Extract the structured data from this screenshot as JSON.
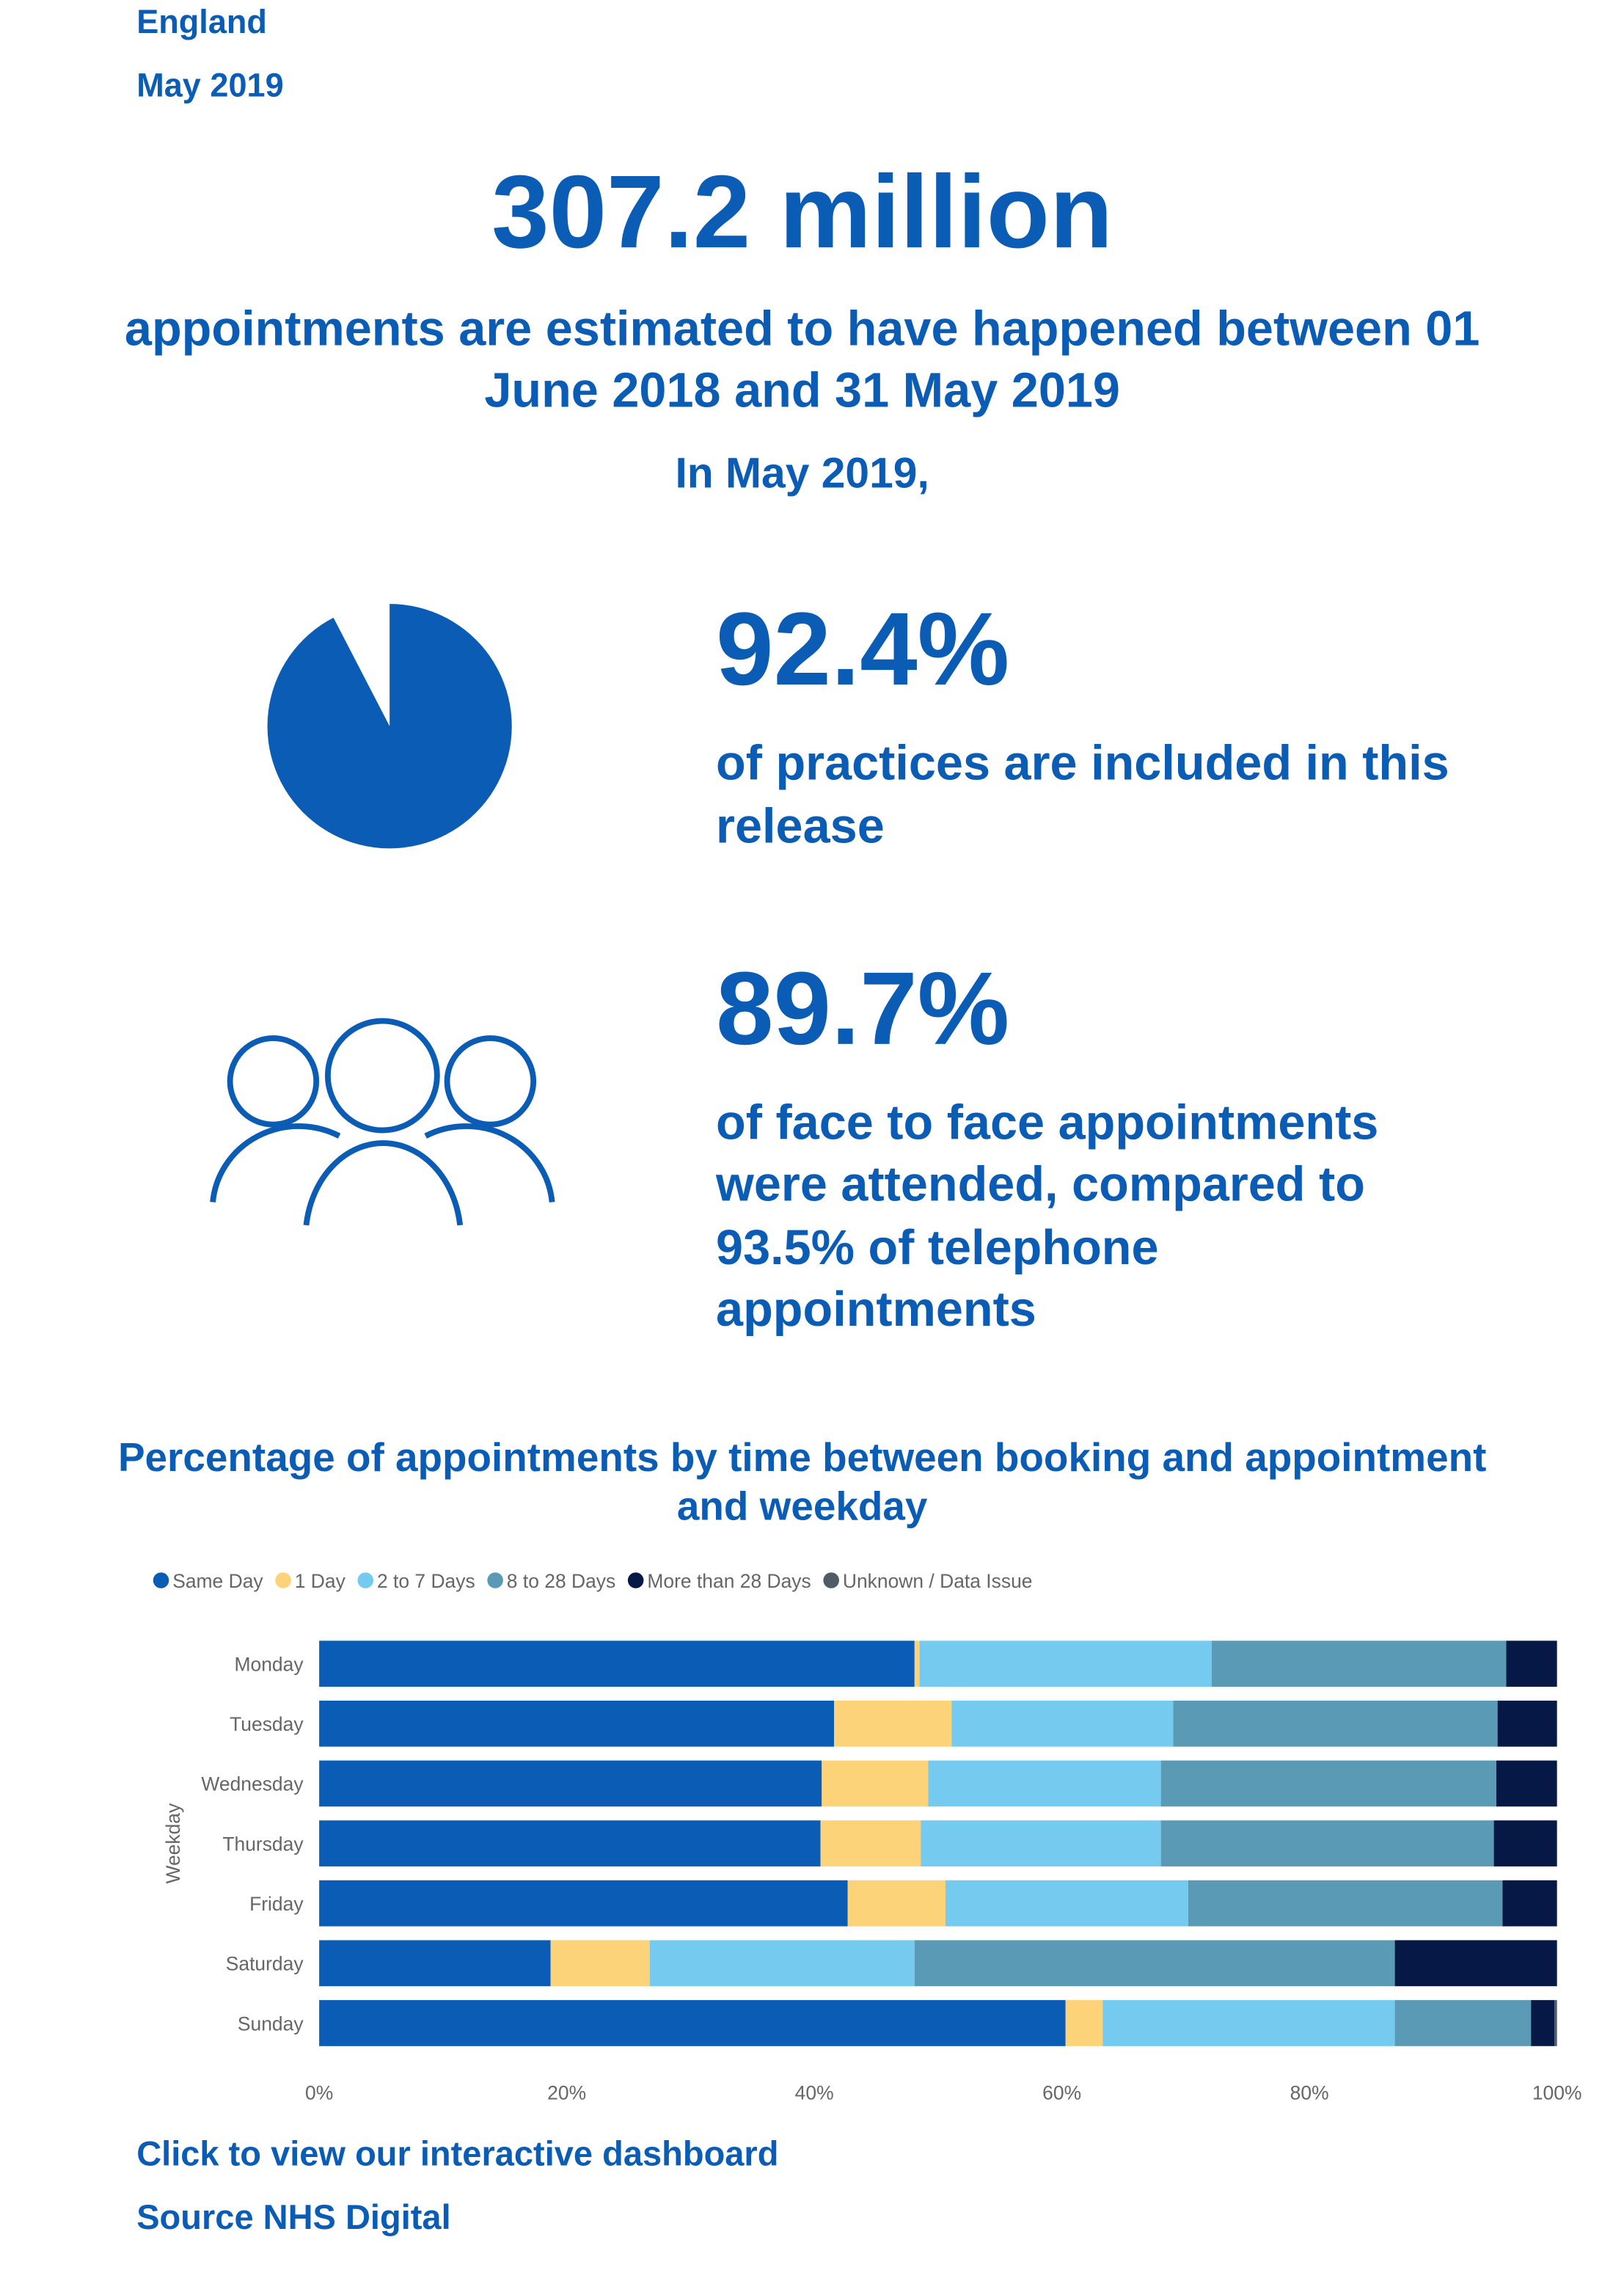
{
  "header": {
    "region": "England",
    "period": "May 2019"
  },
  "headline": {
    "number": "307.2 million",
    "text_lines": [
      "appointments are estimated to have happened between 01",
      "June 2018 and 31 May 2019"
    ],
    "intro": "In May 2019,"
  },
  "stats": [
    {
      "value": 92.4,
      "value_label": "92.4%",
      "text_lines": [
        "of practices are included in this",
        "release"
      ]
    },
    {
      "value_label": "89.7%",
      "text_lines": [
        "of face to face appointments",
        "were attended, compared to",
        "93.5% of telephone",
        "appointments"
      ]
    }
  ],
  "chart_data": {
    "type": "stacked_barh",
    "title_lines": [
      "Percentage of appointments by time between booking and appointment",
      "and weekday"
    ],
    "y_label": "Weekday",
    "categories": [
      "Monday",
      "Tuesday",
      "Wednesday",
      "Thursday",
      "Friday",
      "Saturday",
      "Sunday"
    ],
    "series": [
      {
        "name": "Same Day",
        "color": "#0b5cb5",
        "values": [
          48.1,
          41.6,
          40.6,
          40.5,
          42.7,
          18.7,
          60.3
        ]
      },
      {
        "name": "1 Day",
        "color": "#fdd37a",
        "values": [
          0.4,
          9.5,
          8.6,
          8.1,
          7.9,
          8.0,
          3.0
        ]
      },
      {
        "name": "2 to 7 Days",
        "color": "#74cbef",
        "values": [
          23.6,
          17.9,
          18.8,
          19.4,
          19.6,
          21.4,
          23.6
        ]
      },
      {
        "name": "8  to 28 Days",
        "color": "#5a9ab5",
        "values": [
          23.8,
          26.2,
          27.1,
          26.9,
          25.4,
          38.8,
          11.0
        ]
      },
      {
        "name": "More than 28 Days",
        "color": "#061845",
        "values": [
          4.1,
          4.8,
          4.9,
          5.1,
          4.4,
          13.1,
          1.9
        ]
      },
      {
        "name": "Unknown / Data Issue",
        "color": "#4f5b66",
        "values": [
          0.0,
          0.0,
          0.0,
          0.0,
          0.0,
          0.0,
          0.2
        ]
      }
    ],
    "xlim": [
      0,
      100
    ],
    "xticks": [
      {
        "value": 0,
        "label": "0%"
      },
      {
        "value": 20,
        "label": "20%"
      },
      {
        "value": 40,
        "label": "40%"
      },
      {
        "value": 60,
        "label": "60%"
      },
      {
        "value": 80,
        "label": "80%"
      },
      {
        "value": 100,
        "label": "100%"
      }
    ],
    "legend": "top-left"
  },
  "footer": {
    "link": "Click to view our interactive dashboard",
    "source": "Source NHS Digital"
  }
}
